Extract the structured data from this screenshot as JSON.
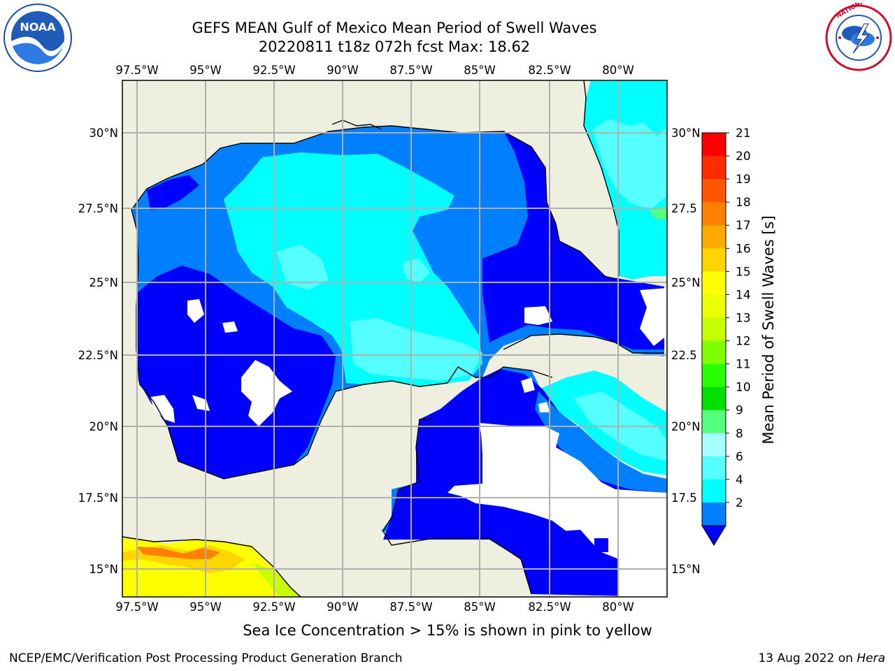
{
  "header": {
    "title_line1": "GEFS MEAN Gulf of Mexico Mean Period of Swell Waves",
    "title_line2": "20220811 t18z 072h fcst   Max: 18.62"
  },
  "map": {
    "lon_ticks": [
      "97.5°W",
      "95°W",
      "92.5°W",
      "90°W",
      "87.5°W",
      "85°W",
      "82.5°W",
      "80°W"
    ],
    "lat_ticks": [
      "30°N",
      "27.5°N",
      "25°N",
      "22.5°N",
      "20°N",
      "17.5°N",
      "15°N"
    ],
    "right_lat_ticks": [
      "30°N",
      "27.5",
      "25°N",
      "22.5",
      "20°N",
      "17.5",
      "15°N"
    ],
    "land_color": "#efefdf",
    "no_data_color": "#ffffff"
  },
  "colorbar": {
    "label": "Mean Period of Swell Waves [s]",
    "ticks": [
      "21",
      "20",
      "19",
      "18",
      "17",
      "16",
      "15",
      "14",
      "13",
      "12",
      "11",
      "10",
      "9",
      "8",
      "6",
      "4",
      "2"
    ],
    "colors": [
      "#ff0000",
      "#ff2a00",
      "#ff5500",
      "#ff8000",
      "#ffaa00",
      "#ffd500",
      "#ffff00",
      "#eaff00",
      "#c8ff00",
      "#80ff00",
      "#2aff00",
      "#00e000",
      "#55ff7f",
      "#a6ffff",
      "#55ffff",
      "#00ffff",
      "#0080ff",
      "#0000ff"
    ]
  },
  "logos": {
    "noaa_text": "NOAA",
    "nws_text": "NATIONAL WEATHER SERVICE"
  },
  "footer": {
    "ice_note": "Sea Ice Concentration > 15% is shown in pink to yellow",
    "left": "NCEP/EMC/Verification Post Processing Product Generation Branch",
    "right_date": "13 Aug 2022 on ",
    "right_host": "Hera"
  }
}
